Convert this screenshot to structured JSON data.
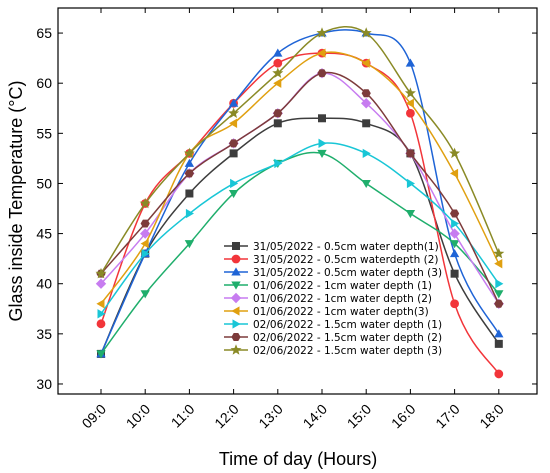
{
  "chart_data": {
    "type": "line",
    "xlabel": "Time of day (Hours)",
    "ylabel": "Glass inside Temperature (°C)",
    "categories": [
      "09:0",
      "10:0",
      "11:0",
      "12:0",
      "13:0",
      "14:0",
      "15:0",
      "16:0",
      "17:0",
      "18:0"
    ],
    "yticks": [
      30,
      35,
      40,
      45,
      50,
      55,
      60,
      65
    ],
    "ylim": [
      29,
      67.5
    ],
    "grid": false,
    "legend_position": "center-right",
    "series": [
      {
        "name": "31/05/2022 - 0.5cm water depth(1)",
        "color": "#3d3d3d",
        "marker": "square",
        "values": [
          33,
          43,
          49,
          53,
          56,
          56.5,
          56,
          53,
          41,
          34
        ]
      },
      {
        "name": "31/05/2022 - 0.5cm waterdepth (2)",
        "color": "#f2353a",
        "marker": "circle",
        "values": [
          36,
          48,
          53,
          58,
          62,
          63,
          62,
          57,
          38,
          31
        ]
      },
      {
        "name": "31/05/2022 - 0.5cm water depth (3)",
        "color": "#1f64d6",
        "marker": "triangle-up",
        "values": [
          33,
          43,
          52,
          58,
          63,
          65,
          65,
          62,
          43,
          35
        ]
      },
      {
        "name": "01/06/2022 - 1cm water depth (1)",
        "color": "#1fae6c",
        "marker": "triangle-down",
        "values": [
          33,
          39,
          44,
          49,
          52,
          53,
          50,
          47,
          44,
          39
        ]
      },
      {
        "name": "01/06/2022 - 1cm water depth (2)",
        "color": "#c77cf0",
        "marker": "diamond",
        "values": [
          40,
          45,
          51,
          54,
          57,
          61,
          58,
          53,
          45,
          38
        ]
      },
      {
        "name": "01/06/2022 - 1cm water depth(3)",
        "color": "#e0a010",
        "marker": "triangle-left",
        "values": [
          38,
          44,
          53,
          56,
          60,
          63,
          62,
          58,
          51,
          42
        ]
      },
      {
        "name": "02/06/2022 - 1.5cm water depth (1)",
        "color": "#19c6d6",
        "marker": "triangle-right",
        "values": [
          37,
          43,
          47,
          50,
          52,
          54,
          53,
          50,
          46,
          40
        ]
      },
      {
        "name": "02/06/2022 - 1.5cm water depth (2)",
        "color": "#7d3b3b",
        "marker": "hexagon",
        "values": [
          41,
          46,
          51,
          54,
          57,
          61,
          59,
          53,
          47,
          38
        ]
      },
      {
        "name": "02/06/2022 - 1.5cm water depth (3)",
        "color": "#8a8a26",
        "marker": "star",
        "values": [
          41,
          48,
          53,
          57,
          61,
          65,
          65,
          59,
          53,
          43
        ]
      }
    ]
  }
}
